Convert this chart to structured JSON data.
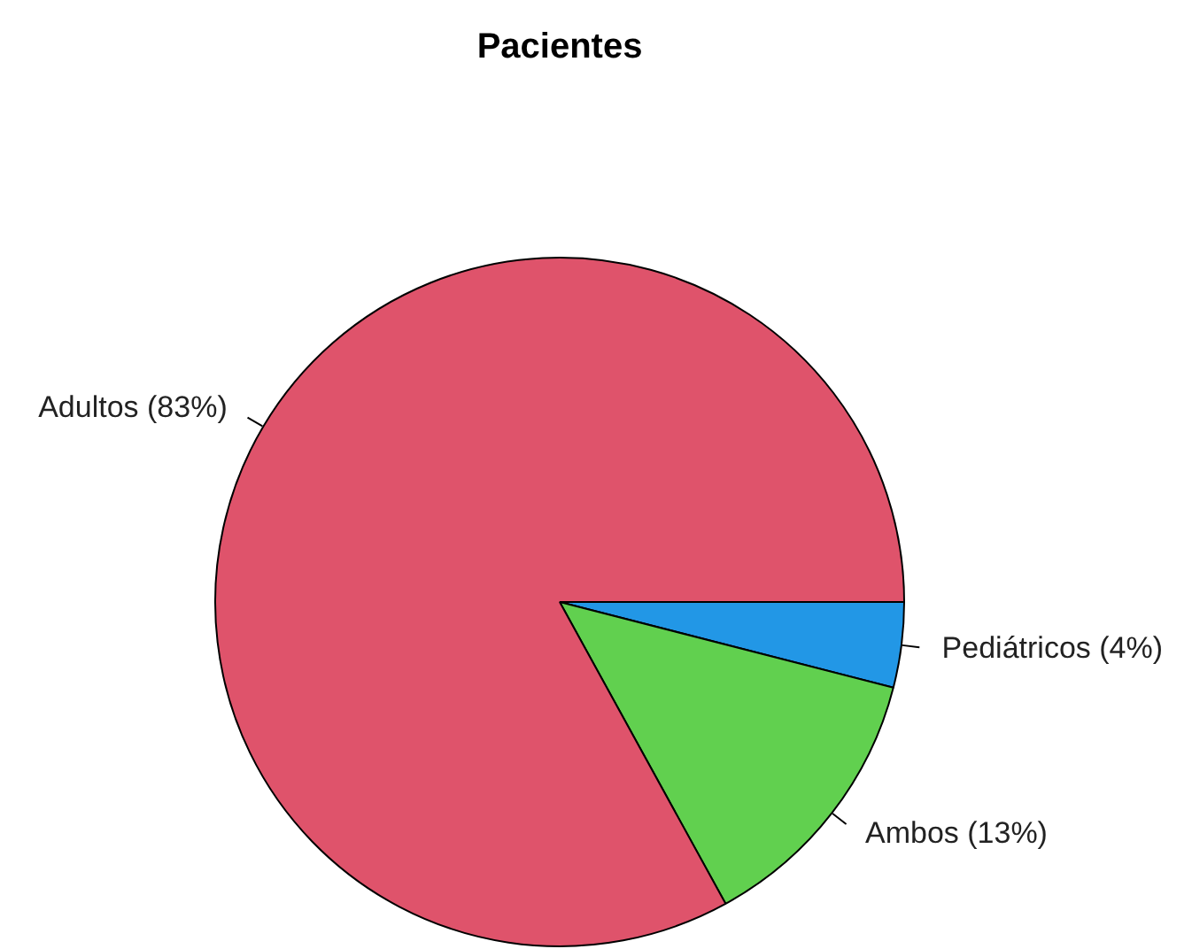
{
  "chart_data": {
    "type": "pie",
    "title": "Pacientes",
    "categories": [
      "Pediátricos (4%)",
      "Ambos (13%)",
      "Adultos (83%)"
    ],
    "values": [
      4,
      13,
      83
    ],
    "colors": [
      "#2297e6",
      "#61d04f",
      "#df536b"
    ],
    "legend": false
  }
}
